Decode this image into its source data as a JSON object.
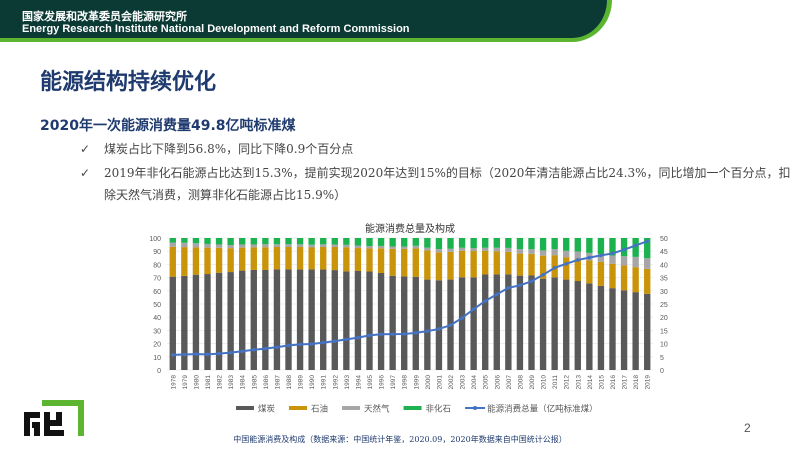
{
  "header": {
    "org_cn": "国家发展和改革委员会能源研究所",
    "org_en": "Energy Research Institute National Development and Reform Commission"
  },
  "title": "能源结构持续优化",
  "subtitle": "2020年一次能源消费量49.8亿吨标准煤",
  "bullets": [
    {
      "icon": "check-icon",
      "text": "煤炭占比下降到56.8%，同比下降0.9个百分点"
    },
    {
      "icon": "check-icon",
      "text": "2019年非化石能源占比达到15.3%，提前实现2020年达到15%的目标（2020年清洁能源占比24.3%，同比增加一个百分点，扣除天然气消费，测算非化石能源占比15.9%）"
    }
  ],
  "caption": "中国能源消费及构成（数据来源：中国统计年鉴，2020.09，2020年数据来自中国统计公报）",
  "page_number": "2",
  "logo_text": "能研",
  "chart_data": {
    "type": "bar",
    "stacked": true,
    "title": "能源消费总量及构成",
    "categories": [
      "1978",
      "1979",
      "1980",
      "1981",
      "1982",
      "1983",
      "1984",
      "1985",
      "1986",
      "1987",
      "1988",
      "1989",
      "1990",
      "1991",
      "1992",
      "1993",
      "1994",
      "1995",
      "1996",
      "1997",
      "1998",
      "1999",
      "2000",
      "2001",
      "2002",
      "2003",
      "2004",
      "2005",
      "2006",
      "2007",
      "2008",
      "2009",
      "2010",
      "2011",
      "2012",
      "2013",
      "2014",
      "2015",
      "2016",
      "2017",
      "2018",
      "2019"
    ],
    "ylim": [
      0,
      100
    ],
    "y2lim": [
      0,
      50
    ],
    "yticks": [
      0,
      10,
      20,
      30,
      40,
      50,
      60,
      70,
      80,
      90,
      100
    ],
    "y2ticks": [
      0,
      5,
      10,
      15,
      20,
      25,
      30,
      35,
      40,
      45,
      50
    ],
    "legend_position": "bottom",
    "grid": true,
    "series": [
      {
        "name": "煤炭",
        "color": "#595959",
        "axis": "left",
        "values": [
          70.7,
          71.3,
          72.2,
          72.7,
          73.7,
          74.2,
          75.3,
          75.8,
          75.8,
          76.2,
          76.2,
          76.1,
          76.2,
          76.1,
          75.7,
          74.7,
          75.0,
          74.6,
          73.5,
          71.4,
          70.9,
          70.6,
          68.5,
          68.0,
          68.5,
          70.2,
          70.2,
          72.4,
          72.4,
          72.5,
          71.5,
          71.6,
          69.2,
          70.2,
          68.5,
          67.4,
          65.6,
          63.7,
          62.0,
          60.4,
          59.0,
          57.7
        ]
      },
      {
        "name": "石油",
        "color": "#c9940a",
        "axis": "left",
        "values": [
          22.7,
          21.8,
          20.7,
          20.0,
          18.9,
          18.1,
          17.4,
          17.1,
          17.2,
          17.0,
          17.0,
          17.1,
          16.6,
          17.1,
          17.5,
          18.2,
          17.4,
          17.5,
          18.7,
          20.4,
          20.8,
          21.5,
          22.0,
          21.2,
          21.0,
          20.1,
          19.9,
          17.8,
          17.5,
          17.0,
          16.7,
          16.4,
          17.4,
          16.8,
          17.0,
          17.1,
          17.4,
          18.3,
          18.5,
          18.8,
          18.9,
          18.9
        ]
      },
      {
        "name": "天然气",
        "color": "#a6a6a6",
        "axis": "left",
        "values": [
          3.2,
          3.3,
          3.1,
          2.8,
          2.5,
          2.4,
          2.4,
          2.2,
          2.3,
          2.1,
          2.1,
          2.0,
          2.1,
          2.0,
          1.9,
          1.9,
          1.9,
          1.8,
          1.8,
          1.8,
          1.8,
          2.0,
          2.2,
          2.4,
          2.3,
          2.3,
          2.3,
          2.4,
          2.7,
          3.0,
          3.4,
          3.5,
          4.0,
          4.6,
          4.8,
          5.3,
          5.7,
          5.9,
          6.2,
          7.0,
          7.8,
          8.1
        ]
      },
      {
        "name": "非化石",
        "color": "#1cb250",
        "axis": "left",
        "values": [
          3.4,
          3.6,
          4.0,
          4.5,
          4.9,
          5.3,
          4.9,
          4.9,
          4.7,
          4.7,
          4.7,
          4.8,
          5.1,
          4.8,
          4.9,
          5.2,
          5.7,
          6.1,
          6.0,
          6.4,
          6.5,
          5.9,
          7.3,
          8.4,
          8.2,
          7.4,
          7.6,
          7.4,
          7.4,
          7.5,
          8.4,
          8.5,
          9.4,
          8.4,
          9.7,
          10.2,
          11.3,
          12.1,
          13.3,
          13.8,
          14.3,
          15.3
        ]
      },
      {
        "name": "能源消费总量（亿吨标准煤）",
        "type": "line",
        "color": "#4472c4",
        "axis": "right",
        "values": [
          5.71,
          5.86,
          6.03,
          5.94,
          6.21,
          6.6,
          7.09,
          7.67,
          8.08,
          8.66,
          9.3,
          9.69,
          9.87,
          10.38,
          10.92,
          11.6,
          12.27,
          13.12,
          13.52,
          13.59,
          13.62,
          14.06,
          14.7,
          15.55,
          16.96,
          19.71,
          23.03,
          26.14,
          28.65,
          31.14,
          32.06,
          33.61,
          36.06,
          38.7,
          40.21,
          41.69,
          42.58,
          43.41,
          44.15,
          45.58,
          47.19,
          48.75
        ]
      }
    ]
  }
}
